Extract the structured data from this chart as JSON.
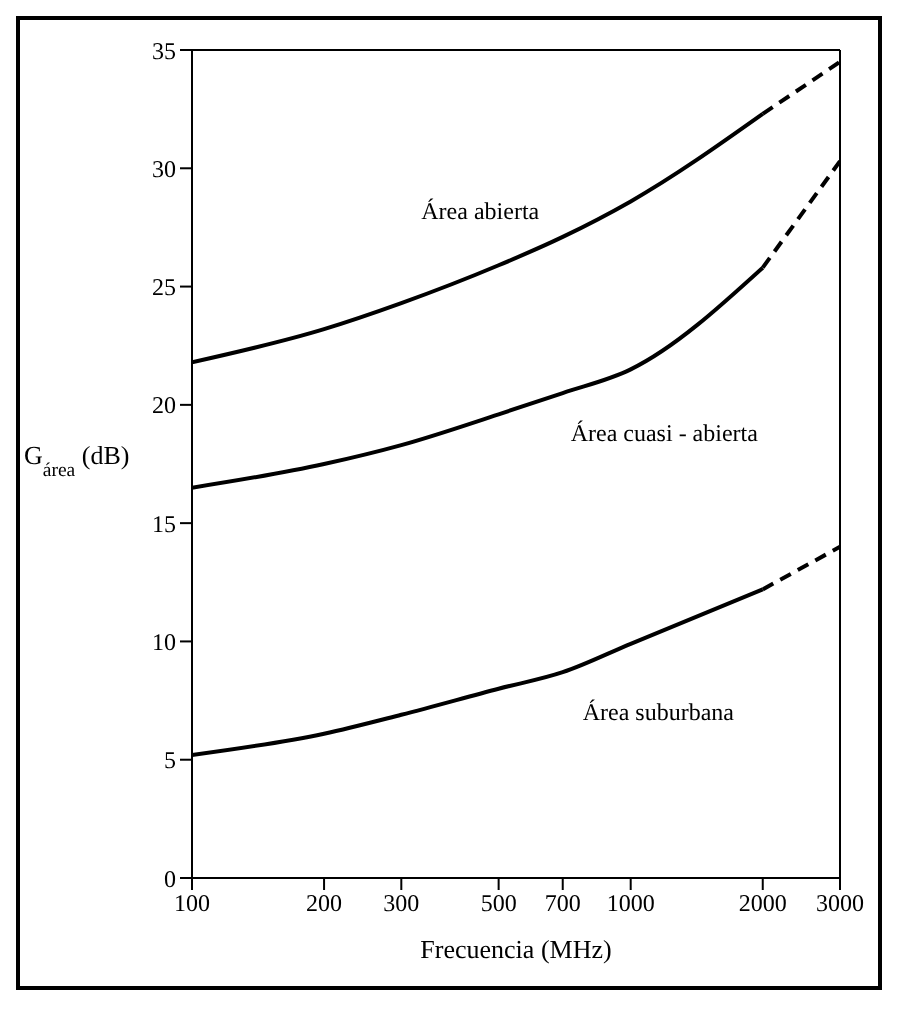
{
  "chart_data": {
    "type": "line",
    "xlabel": "Frecuencia (MHz)",
    "ylabel": "G$_{área}$ (dB)",
    "x": [
      100,
      200,
      300,
      500,
      700,
      1000,
      2000,
      3000
    ],
    "series": [
      {
        "name": "Área abierta",
        "color": "#000000",
        "values": [
          21.8,
          23.2,
          24.3,
          25.9,
          27.1,
          28.6,
          32.3,
          null
        ]
      },
      {
        "color": "#000000",
        "line_style": "dashed",
        "values": [
          null,
          null,
          null,
          null,
          null,
          null,
          32.3,
          34.5
        ]
      },
      {
        "name": "Área cuasi - abierta",
        "color": "#000000",
        "values": [
          16.5,
          17.5,
          18.3,
          19.6,
          20.5,
          21.5,
          25.8,
          null
        ]
      },
      {
        "color": "#000000",
        "line_style": "dashed",
        "values": [
          null,
          null,
          null,
          null,
          null,
          null,
          25.8,
          30.3
        ]
      },
      {
        "name": "Área suburbana",
        "color": "#000000",
        "values": [
          5.2,
          6.1,
          6.9,
          8.0,
          8.7,
          9.9,
          12.2,
          null
        ]
      },
      {
        "color": "#000000",
        "line_style": "dashed",
        "values": [
          null,
          null,
          null,
          null,
          null,
          null,
          12.2,
          14.0
        ]
      }
    ],
    "log": "x",
    "xlim": [
      100,
      3000
    ],
    "xticks": [
      100,
      200,
      300,
      500,
      700,
      1000,
      2000,
      3000
    ],
    "ylim": [
      0,
      35
    ],
    "yticks": [
      0,
      5,
      10,
      15,
      20,
      25,
      30,
      35
    ],
    "line_style": "solid",
    "marker": "none"
  }
}
